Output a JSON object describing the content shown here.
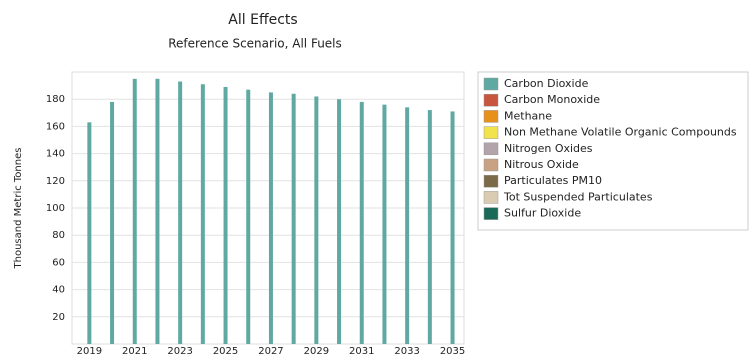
{
  "chart_data": {
    "type": "bar",
    "title": "All Effects",
    "subtitle": "Reference Scenario, All Fuels",
    "y_label": "Thousand Metric Tonnes",
    "categories": [
      "2019",
      null,
      "2021",
      null,
      "2023",
      null,
      "2025",
      null,
      "2027",
      null,
      "2029",
      null,
      "2031",
      null,
      "2033",
      null,
      "2035"
    ],
    "series": [
      {
        "name": "Carbon Dioxide",
        "color": "#5fa9a2",
        "values": [
          163,
          178,
          195,
          195,
          193,
          191,
          189,
          187,
          185,
          184,
          182,
          180,
          178,
          176,
          174,
          172,
          171
        ]
      },
      {
        "name": "Carbon Monoxide",
        "color": "#c8553d",
        "values": [
          0,
          0,
          0,
          0,
          0,
          0,
          0,
          0,
          0,
          0,
          0,
          0,
          0,
          0,
          0,
          0,
          0
        ]
      },
      {
        "name": "Methane",
        "color": "#e8911a",
        "values": [
          0,
          0,
          0,
          0,
          0,
          0,
          0,
          0,
          0,
          0,
          0,
          0,
          0,
          0,
          0,
          0,
          0
        ]
      },
      {
        "name": "Non Methane Volatile Organic Compounds",
        "color": "#f2e34c",
        "values": [
          0,
          0,
          0,
          0,
          0,
          0,
          0,
          0,
          0,
          0,
          0,
          0,
          0,
          0,
          0,
          0,
          0
        ]
      },
      {
        "name": "Nitrogen Oxides",
        "color": "#b3a3ab",
        "values": [
          0,
          0,
          0,
          0,
          0,
          0,
          0,
          0,
          0,
          0,
          0,
          0,
          0,
          0,
          0,
          0,
          0
        ]
      },
      {
        "name": "Nitrous Oxide",
        "color": "#c9a183",
        "values": [
          0,
          0,
          0,
          0,
          0,
          0,
          0,
          0,
          0,
          0,
          0,
          0,
          0,
          0,
          0,
          0,
          0
        ]
      },
      {
        "name": "Particulates PM10",
        "color": "#7b6a48",
        "values": [
          0,
          0,
          0,
          0,
          0,
          0,
          0,
          0,
          0,
          0,
          0,
          0,
          0,
          0,
          0,
          0,
          0
        ]
      },
      {
        "name": "Tot Suspended Particulates",
        "color": "#d9ccb2",
        "values": [
          0,
          0,
          0,
          0,
          0,
          0,
          0,
          0,
          0,
          0,
          0,
          0,
          0,
          0,
          0,
          0,
          0
        ]
      },
      {
        "name": "Sulfur Dioxide",
        "color": "#1a6a5a",
        "values": [
          0,
          0,
          0,
          0,
          0,
          0,
          0,
          0,
          0,
          0,
          0,
          0,
          0,
          0,
          0,
          0,
          0
        ]
      }
    ],
    "ylim": [
      0,
      200
    ],
    "yticks": [
      20,
      40,
      60,
      80,
      100,
      120,
      140,
      160,
      180
    ],
    "grid": true,
    "legend": "right"
  }
}
